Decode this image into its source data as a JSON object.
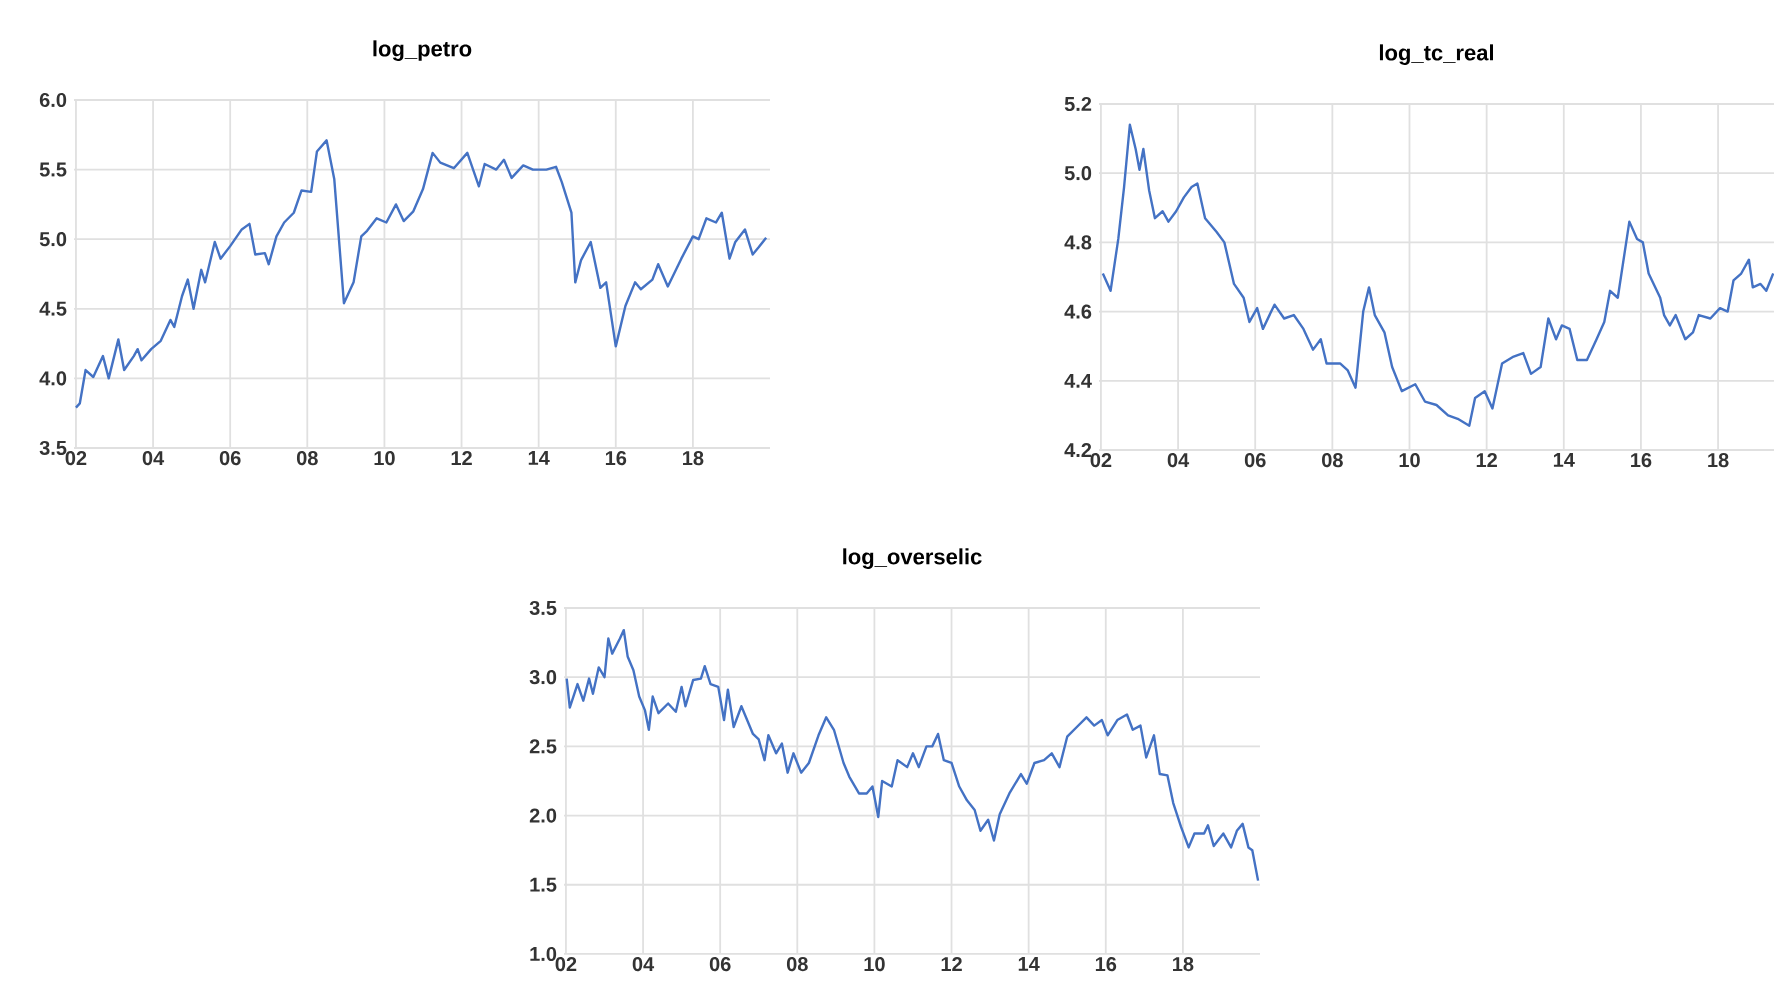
{
  "chart_data": [
    {
      "type": "line",
      "title": "log_petro",
      "grid": true,
      "xlim": [
        2001.95,
        2020.0
      ],
      "ylim": [
        3.5,
        6.0
      ],
      "xticks": [
        {
          "value": 2002,
          "label": "02"
        },
        {
          "value": 2004,
          "label": "04"
        },
        {
          "value": 2006,
          "label": "06"
        },
        {
          "value": 2008,
          "label": "08"
        },
        {
          "value": 2010,
          "label": "10"
        },
        {
          "value": 2012,
          "label": "12"
        },
        {
          "value": 2014,
          "label": "14"
        },
        {
          "value": 2016,
          "label": "16"
        },
        {
          "value": 2018,
          "label": "18"
        }
      ],
      "yticks": [
        {
          "value": 3.5,
          "label": "3.5"
        },
        {
          "value": 4.0,
          "label": "4.0"
        },
        {
          "value": 4.5,
          "label": "4.5"
        },
        {
          "value": 5.0,
          "label": "5.0"
        },
        {
          "value": 5.5,
          "label": "5.5"
        },
        {
          "value": 6.0,
          "label": "6.0"
        }
      ],
      "x": [
        2002.0,
        2002.1,
        2002.25,
        2002.45,
        2002.7,
        2002.85,
        2003.1,
        2003.25,
        2003.5,
        2003.6,
        2003.7,
        2003.95,
        2004.2,
        2004.45,
        2004.55,
        2004.75,
        2004.9,
        2005.05,
        2005.25,
        2005.35,
        2005.6,
        2005.75,
        2006.0,
        2006.3,
        2006.5,
        2006.65,
        2006.9,
        2007.0,
        2007.2,
        2007.4,
        2007.65,
        2007.85,
        2008.1,
        2008.25,
        2008.5,
        2008.7,
        2008.95,
        2009.2,
        2009.4,
        2009.55,
        2009.8,
        2010.05,
        2010.3,
        2010.5,
        2010.75,
        2011.0,
        2011.25,
        2011.45,
        2011.8,
        2012.15,
        2012.45,
        2012.6,
        2012.9,
        2013.1,
        2013.3,
        2013.6,
        2013.85,
        2014.2,
        2014.45,
        2014.6,
        2014.85,
        2014.95,
        2015.1,
        2015.35,
        2015.6,
        2015.75,
        2016.0,
        2016.25,
        2016.5,
        2016.65,
        2016.95,
        2017.1,
        2017.35,
        2017.7,
        2018.0,
        2018.15,
        2018.35,
        2018.6,
        2018.75,
        2018.95,
        2019.1,
        2019.35,
        2019.55,
        2019.7,
        2019.9
      ],
      "series": [
        {
          "color": "#4472c4",
          "values": [
            3.79,
            3.82,
            4.06,
            4.01,
            4.16,
            4.0,
            4.28,
            4.06,
            4.16,
            4.21,
            4.13,
            4.21,
            4.27,
            4.42,
            4.37,
            4.59,
            4.71,
            4.5,
            4.78,
            4.69,
            4.98,
            4.86,
            4.95,
            5.07,
            5.11,
            4.89,
            4.9,
            4.82,
            5.02,
            5.12,
            5.19,
            5.35,
            5.34,
            5.63,
            5.71,
            5.43,
            4.54,
            4.69,
            5.02,
            5.06,
            5.15,
            5.12,
            5.25,
            5.13,
            5.2,
            5.36,
            5.62,
            5.55,
            5.51,
            5.62,
            5.38,
            5.54,
            5.5,
            5.57,
            5.44,
            5.53,
            5.5,
            5.5,
            5.52,
            5.41,
            5.19,
            4.69,
            4.85,
            4.98,
            4.65,
            4.69,
            4.23,
            4.52,
            4.69,
            4.64,
            4.71,
            4.82,
            4.66,
            4.86,
            5.02,
            5.0,
            5.15,
            5.12,
            5.19,
            4.86,
            4.98,
            5.07,
            4.89,
            4.94,
            5.01
          ]
        }
      ]
    },
    {
      "type": "line",
      "title": "log_tc_real",
      "grid": true,
      "xlim": [
        2001.95,
        2019.45
      ],
      "ylim": [
        4.2,
        5.2
      ],
      "xticks": [
        {
          "value": 2002,
          "label": "02"
        },
        {
          "value": 2004,
          "label": "04"
        },
        {
          "value": 2006,
          "label": "06"
        },
        {
          "value": 2008,
          "label": "08"
        },
        {
          "value": 2010,
          "label": "10"
        },
        {
          "value": 2012,
          "label": "12"
        },
        {
          "value": 2014,
          "label": "14"
        },
        {
          "value": 2016,
          "label": "16"
        },
        {
          "value": 2018,
          "label": "18"
        }
      ],
      "yticks": [
        {
          "value": 4.2,
          "label": "4.2"
        },
        {
          "value": 4.4,
          "label": "4.4"
        },
        {
          "value": 4.6,
          "label": "4.6"
        },
        {
          "value": 4.8,
          "label": "4.8"
        },
        {
          "value": 5.0,
          "label": "5.0"
        },
        {
          "value": 5.2,
          "label": "5.2"
        }
      ],
      "x": [
        2002.05,
        2002.25,
        2002.45,
        2002.6,
        2002.75,
        2002.9,
        2003.0,
        2003.1,
        2003.25,
        2003.4,
        2003.6,
        2003.75,
        2003.95,
        2004.15,
        2004.35,
        2004.5,
        2004.7,
        2005.0,
        2005.2,
        2005.45,
        2005.7,
        2005.85,
        2006.05,
        2006.2,
        2006.5,
        2006.75,
        2007.0,
        2007.25,
        2007.5,
        2007.7,
        2007.85,
        2008.2,
        2008.4,
        2008.6,
        2008.8,
        2008.95,
        2009.1,
        2009.35,
        2009.55,
        2009.8,
        2010.15,
        2010.4,
        2010.7,
        2011.0,
        2011.25,
        2011.55,
        2011.7,
        2011.95,
        2012.15,
        2012.4,
        2012.7,
        2012.95,
        2013.15,
        2013.4,
        2013.6,
        2013.8,
        2013.95,
        2014.15,
        2014.35,
        2014.6,
        2014.85,
        2015.05,
        2015.2,
        2015.4,
        2015.7,
        2015.9,
        2016.05,
        2016.2,
        2016.5,
        2016.6,
        2016.75,
        2016.9,
        2017.15,
        2017.35,
        2017.5,
        2017.8,
        2018.05,
        2018.25,
        2018.4,
        2018.6,
        2018.8,
        2018.9,
        2019.1,
        2019.25,
        2019.43
      ],
      "series": [
        {
          "color": "#4472c4",
          "values": [
            4.71,
            4.66,
            4.81,
            4.96,
            5.14,
            5.07,
            5.01,
            5.07,
            4.95,
            4.87,
            4.89,
            4.86,
            4.89,
            4.93,
            4.96,
            4.97,
            4.87,
            4.83,
            4.8,
            4.68,
            4.64,
            4.57,
            4.61,
            4.55,
            4.62,
            4.58,
            4.59,
            4.55,
            4.49,
            4.52,
            4.45,
            4.45,
            4.43,
            4.38,
            4.6,
            4.67,
            4.59,
            4.54,
            4.44,
            4.37,
            4.39,
            4.34,
            4.33,
            4.3,
            4.29,
            4.27,
            4.35,
            4.37,
            4.32,
            4.45,
            4.47,
            4.48,
            4.42,
            4.44,
            4.58,
            4.52,
            4.56,
            4.55,
            4.46,
            4.46,
            4.52,
            4.57,
            4.66,
            4.64,
            4.86,
            4.81,
            4.8,
            4.71,
            4.64,
            4.59,
            4.56,
            4.59,
            4.52,
            4.54,
            4.59,
            4.58,
            4.61,
            4.6,
            4.69,
            4.71,
            4.75,
            4.67,
            4.68,
            4.66,
            4.71
          ]
        }
      ]
    },
    {
      "type": "line",
      "title": "log_overselic",
      "grid": true,
      "xlim": [
        2001.95,
        2020.0
      ],
      "ylim": [
        1.0,
        3.5
      ],
      "xticks": [
        {
          "value": 2002,
          "label": "02"
        },
        {
          "value": 2004,
          "label": "04"
        },
        {
          "value": 2006,
          "label": "06"
        },
        {
          "value": 2008,
          "label": "08"
        },
        {
          "value": 2010,
          "label": "10"
        },
        {
          "value": 2012,
          "label": "12"
        },
        {
          "value": 2014,
          "label": "14"
        },
        {
          "value": 2016,
          "label": "16"
        },
        {
          "value": 2018,
          "label": "18"
        }
      ],
      "yticks": [
        {
          "value": 1.0,
          "label": "1.0"
        },
        {
          "value": 1.5,
          "label": "1.5"
        },
        {
          "value": 2.0,
          "label": "2.0"
        },
        {
          "value": 2.5,
          "label": "2.5"
        },
        {
          "value": 3.0,
          "label": "3.0"
        },
        {
          "value": 3.5,
          "label": "3.5"
        }
      ],
      "x": [
        2002.02,
        2002.1,
        2002.3,
        2002.45,
        2002.6,
        2002.7,
        2002.85,
        2003.0,
        2003.1,
        2003.2,
        2003.4,
        2003.5,
        2003.6,
        2003.75,
        2003.9,
        2004.05,
        2004.15,
        2004.25,
        2004.4,
        2004.65,
        2004.85,
        2005.0,
        2005.1,
        2005.3,
        2005.5,
        2005.6,
        2005.75,
        2005.95,
        2006.1,
        2006.2,
        2006.35,
        2006.55,
        2006.85,
        2007.0,
        2007.15,
        2007.25,
        2007.45,
        2007.6,
        2007.75,
        2007.9,
        2008.1,
        2008.3,
        2008.55,
        2008.75,
        2008.95,
        2009.2,
        2009.35,
        2009.6,
        2009.8,
        2009.95,
        2010.1,
        2010.2,
        2010.45,
        2010.6,
        2010.85,
        2011.0,
        2011.15,
        2011.35,
        2011.5,
        2011.65,
        2011.8,
        2012.0,
        2012.2,
        2012.4,
        2012.6,
        2012.75,
        2012.95,
        2013.1,
        2013.25,
        2013.5,
        2013.8,
        2013.95,
        2014.15,
        2014.4,
        2014.6,
        2014.8,
        2015.0,
        2015.25,
        2015.5,
        2015.7,
        2015.9,
        2016.05,
        2016.3,
        2016.55,
        2016.7,
        2016.9,
        2017.05,
        2017.25,
        2017.4,
        2017.6,
        2017.75,
        2017.95,
        2018.15,
        2018.3,
        2018.55,
        2018.65,
        2018.8,
        2019.05,
        2019.25,
        2019.4,
        2019.55,
        2019.7,
        2019.8,
        2019.95
      ],
      "series": [
        {
          "color": "#4472c4",
          "values": [
            2.99,
            2.78,
            2.95,
            2.83,
            2.99,
            2.88,
            3.07,
            3.0,
            3.28,
            3.17,
            3.28,
            3.34,
            3.15,
            3.05,
            2.86,
            2.76,
            2.62,
            2.86,
            2.74,
            2.81,
            2.75,
            2.93,
            2.79,
            2.98,
            2.99,
            3.08,
            2.95,
            2.93,
            2.69,
            2.91,
            2.64,
            2.79,
            2.59,
            2.55,
            2.4,
            2.58,
            2.45,
            2.52,
            2.31,
            2.45,
            2.31,
            2.38,
            2.58,
            2.71,
            2.62,
            2.38,
            2.28,
            2.16,
            2.16,
            2.21,
            1.99,
            2.25,
            2.21,
            2.4,
            2.35,
            2.45,
            2.35,
            2.5,
            2.5,
            2.59,
            2.4,
            2.38,
            2.21,
            2.11,
            2.04,
            1.89,
            1.97,
            1.82,
            2.01,
            2.16,
            2.3,
            2.23,
            2.38,
            2.4,
            2.45,
            2.35,
            2.57,
            2.64,
            2.71,
            2.65,
            2.69,
            2.58,
            2.69,
            2.73,
            2.62,
            2.65,
            2.42,
            2.58,
            2.3,
            2.29,
            2.09,
            1.92,
            1.77,
            1.87,
            1.87,
            1.93,
            1.78,
            1.87,
            1.77,
            1.89,
            1.94,
            1.77,
            1.75,
            1.53
          ]
        }
      ]
    }
  ]
}
